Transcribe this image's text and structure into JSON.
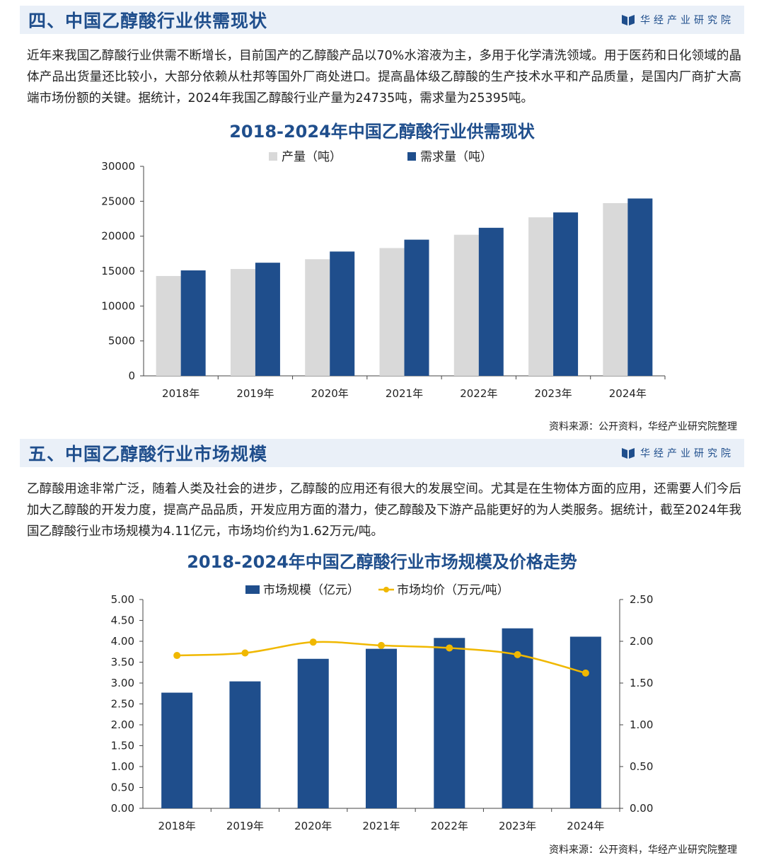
{
  "brand": {
    "name": "华经产业研究院"
  },
  "section1": {
    "title": "四、中国乙醇酸行业供需现状",
    "paragraph": "近年来我国乙醇酸行业供需不断增长，目前国产的乙醇酸产品以70%水溶液为主，多用于化学清洗领域。用于医药和日化领域的晶体产品出货量还比较小，大部分依赖从杜邦等国外厂商处进口。提高晶体级乙醇酸的生产技术水平和产品质量，是国内厂商扩大高端市场份额的关键。据统计，2024年我国乙醇酸行业产量为24735吨，需求量为25395吨。",
    "source": "资料来源：公开资料，华经产业研究院整理"
  },
  "section2": {
    "title": "五、中国乙醇酸行业市场规模",
    "paragraph": "乙醇酸用途非常广泛，随着人类及社会的进步，乙醇酸的应用还有很大的发展空间。尤其是在生物体方面的应用，还需要人们今后加大乙醇酸的开发力度，提高产品品质，开发应用方面的潜力，使乙醇酸及下游产品能更好的为人类服务。据统计，截至2024年我国乙醇酸行业市场规模为4.11亿元，市场均价约为1.62万元/吨。",
    "source": "资料来源：公开资料，华经产业研究院整理"
  },
  "chart_data": [
    {
      "type": "bar",
      "title": "2018-2024年中国乙醇酸行业供需现状",
      "categories": [
        "2018年",
        "2019年",
        "2020年",
        "2021年",
        "2022年",
        "2023年",
        "2024年"
      ],
      "series": [
        {
          "name": "产量（吨）",
          "color": "#d9d9d9",
          "values": [
            14300,
            15300,
            16700,
            18300,
            20200,
            22700,
            24735
          ]
        },
        {
          "name": "需求量（吨）",
          "color": "#1f4e8c",
          "values": [
            15100,
            16200,
            17800,
            19500,
            21200,
            23400,
            25395
          ]
        }
      ],
      "ylim": [
        0,
        30000
      ],
      "yticks": [
        0,
        5000,
        10000,
        15000,
        20000,
        25000,
        30000
      ],
      "legend": "top-center",
      "grid": false
    },
    {
      "type": "bar+line",
      "title": "2018-2024年中国乙醇酸行业市场规模及价格走势",
      "categories": [
        "2018年",
        "2019年",
        "2020年",
        "2021年",
        "2022年",
        "2023年",
        "2024年"
      ],
      "series": [
        {
          "name": "市场规模（亿元）",
          "type": "bar",
          "axis": "left",
          "color": "#1f4e8c",
          "values": [
            2.77,
            3.04,
            3.58,
            3.82,
            4.08,
            4.31,
            4.11
          ]
        },
        {
          "name": "市场均价（万元/吨）",
          "type": "line",
          "axis": "right",
          "color": "#f0b800",
          "values": [
            1.83,
            1.86,
            1.99,
            1.95,
            1.92,
            1.84,
            1.62
          ]
        }
      ],
      "ylim_left": [
        0,
        5
      ],
      "yticks_left": [
        "0.00",
        "0.50",
        "1.00",
        "1.50",
        "2.00",
        "2.50",
        "3.00",
        "3.50",
        "4.00",
        "4.50",
        "5.00"
      ],
      "ylim_right": [
        0,
        2.5
      ],
      "yticks_right": [
        "0.00",
        "0.50",
        "1.00",
        "1.50",
        "2.00",
        "2.50"
      ],
      "legend": "top-center",
      "grid": false
    }
  ]
}
